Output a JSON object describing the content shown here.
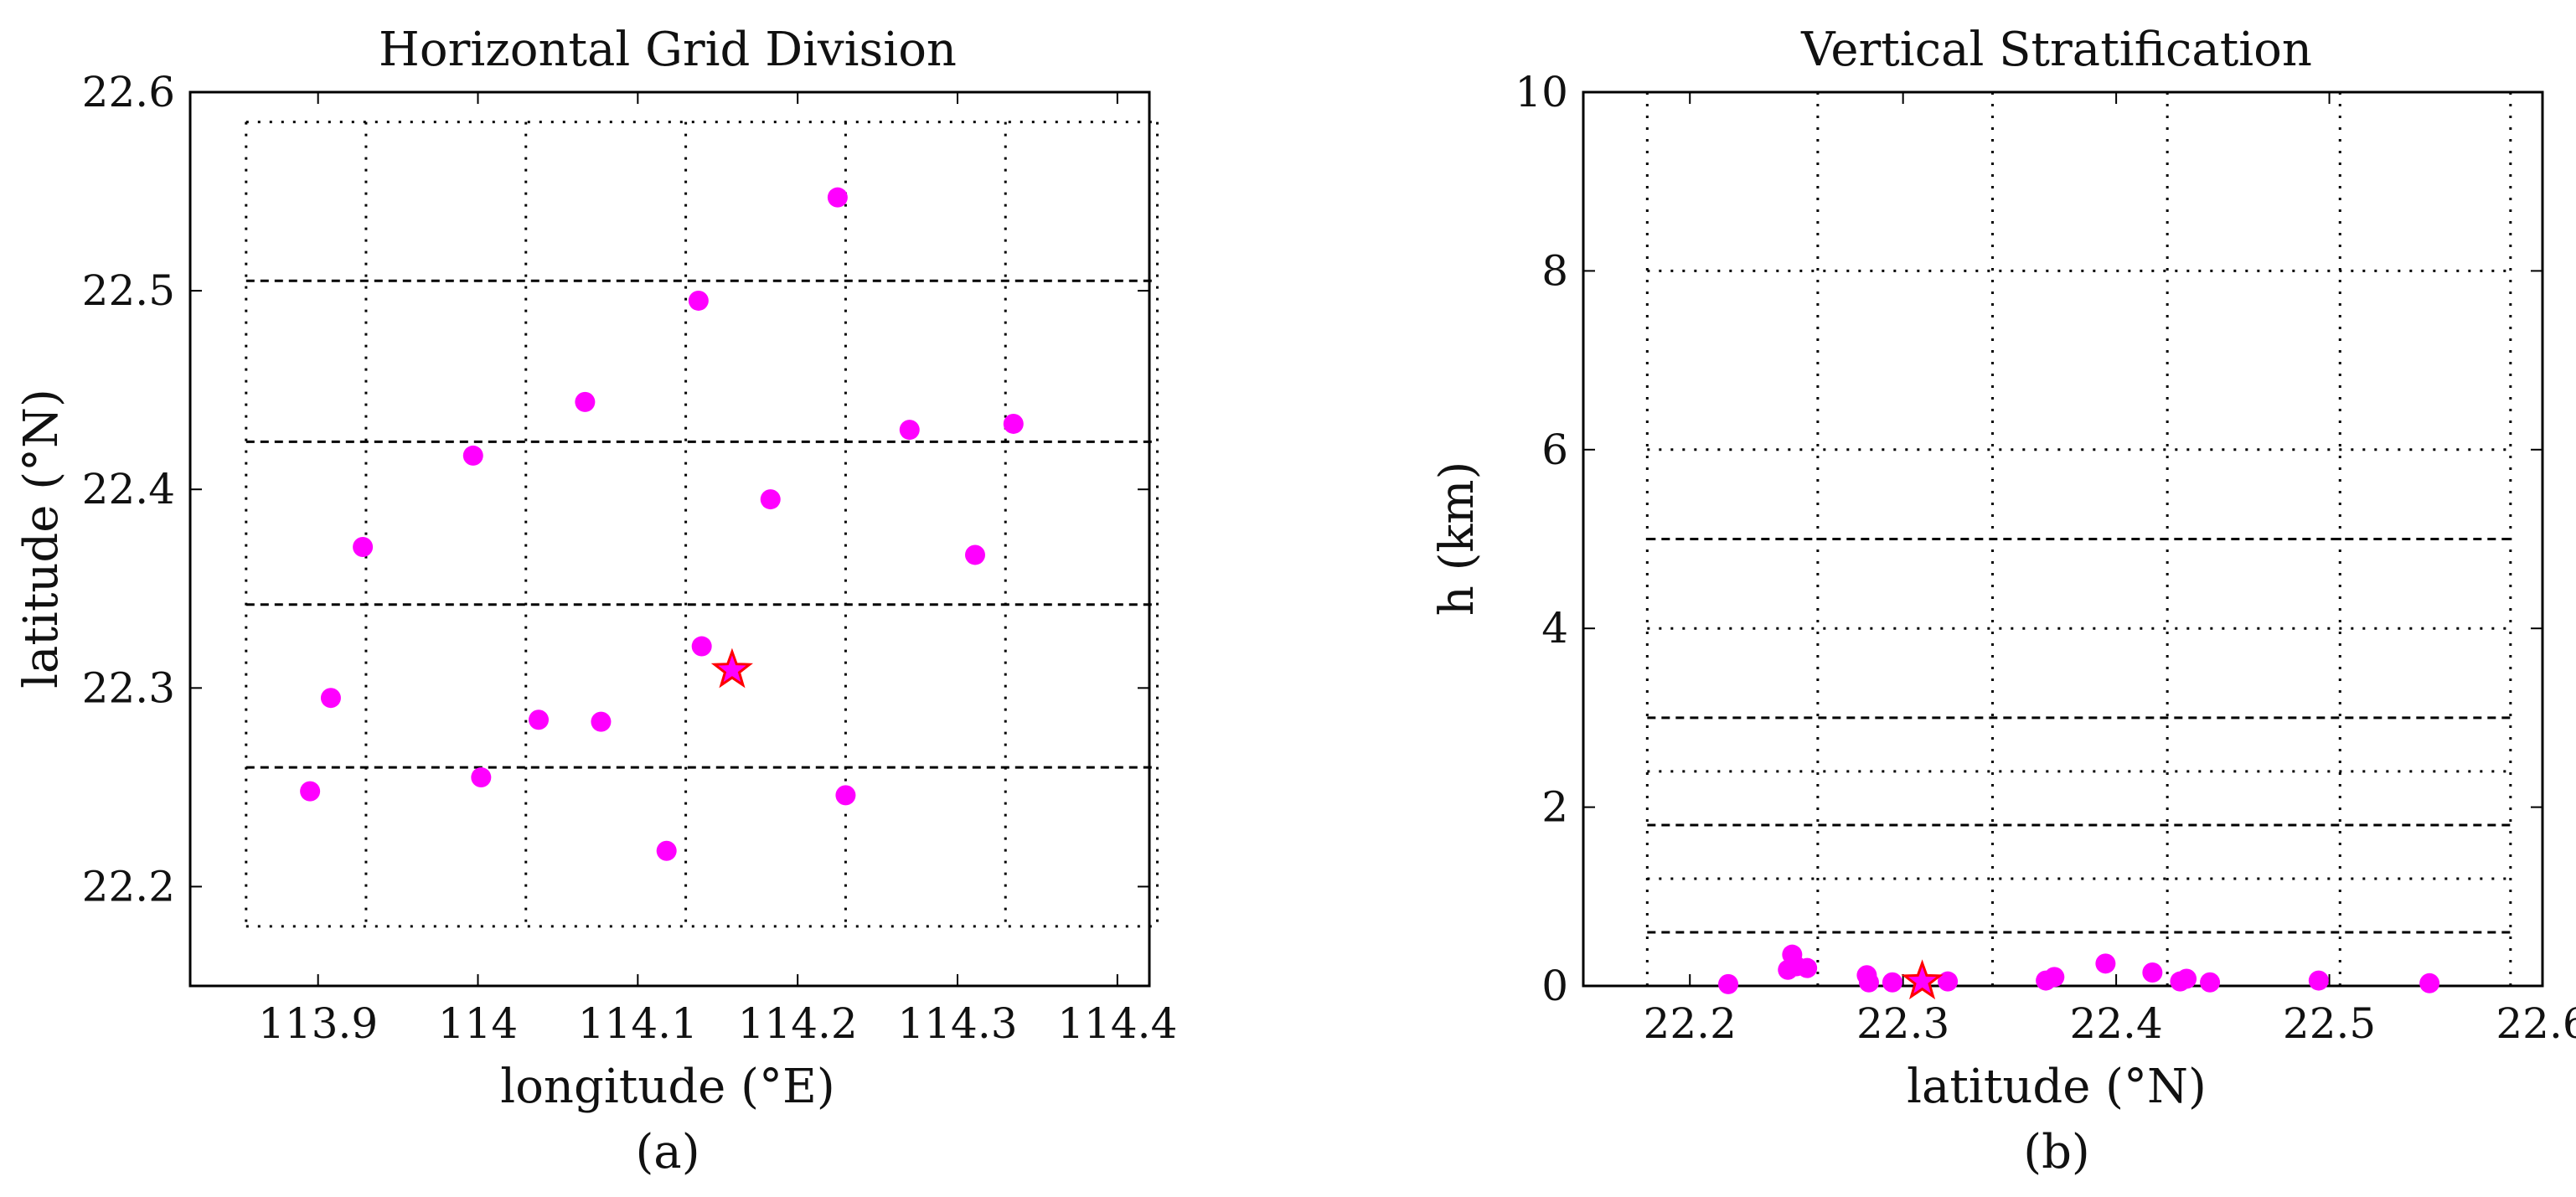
{
  "colors": {
    "point": "#ff00ff",
    "star": "#ff0000",
    "grid": "#000000",
    "axis": "#000000"
  },
  "chart_data": [
    {
      "type": "scatter",
      "panel_label": "(a)",
      "title": "Horizontal Grid Division",
      "xlabel": "longitude (°E)",
      "ylabel": "latitude (°N)",
      "xlim": [
        113.82,
        114.42
      ],
      "ylim": [
        22.15,
        22.6
      ],
      "xticks": [
        113.9,
        114,
        114.1,
        114.2,
        114.3,
        114.4
      ],
      "xtick_labels": [
        "113.9",
        "114",
        "114.1",
        "114.2",
        "114.3",
        "114.4"
      ],
      "yticks": [
        22.2,
        22.3,
        22.4,
        22.5,
        22.6
      ],
      "ytick_labels": [
        "22.2",
        "22.3",
        "22.4",
        "22.5",
        "22.6"
      ],
      "grid_dotted_x": [
        113.855,
        113.93,
        114.03,
        114.13,
        114.23,
        114.33,
        114.425
      ],
      "grid_dotted_y": [
        22.18,
        22.585
      ],
      "grid_dashed_y": [
        22.26,
        22.342,
        22.424,
        22.505
      ],
      "points": [
        {
          "x": 114.225,
          "y": 22.547
        },
        {
          "x": 114.138,
          "y": 22.495
        },
        {
          "x": 114.067,
          "y": 22.444
        },
        {
          "x": 114.27,
          "y": 22.43
        },
        {
          "x": 114.335,
          "y": 22.433
        },
        {
          "x": 113.997,
          "y": 22.417
        },
        {
          "x": 114.183,
          "y": 22.395
        },
        {
          "x": 113.928,
          "y": 22.371
        },
        {
          "x": 114.311,
          "y": 22.367
        },
        {
          "x": 114.14,
          "y": 22.321
        },
        {
          "x": 113.908,
          "y": 22.295
        },
        {
          "x": 114.038,
          "y": 22.284
        },
        {
          "x": 114.077,
          "y": 22.283
        },
        {
          "x": 113.895,
          "y": 22.248
        },
        {
          "x": 114.002,
          "y": 22.255
        },
        {
          "x": 114.23,
          "y": 22.246
        },
        {
          "x": 114.118,
          "y": 22.218
        }
      ],
      "star": {
        "x": 114.159,
        "y": 22.309
      }
    },
    {
      "type": "scatter",
      "panel_label": "(b)",
      "title": "Vertical Stratification",
      "xlabel": "latitude (°N)",
      "ylabel": "h (km)",
      "xlim": [
        22.15,
        22.6
      ],
      "ylim": [
        0,
        10
      ],
      "xticks": [
        22.2,
        22.3,
        22.4,
        22.5,
        22.6
      ],
      "xtick_labels": [
        "22.2",
        "22.3",
        "22.4",
        "22.5",
        "22.6"
      ],
      "yticks": [
        0,
        2,
        4,
        6,
        8,
        10
      ],
      "ytick_labels": [
        "0",
        "2",
        "4",
        "6",
        "8",
        "10"
      ],
      "grid_dotted_x": [
        22.18,
        22.26,
        22.342,
        22.424,
        22.505,
        22.585
      ],
      "grid_dotted_y": [
        10,
        8,
        6,
        4,
        2.4,
        1.2
      ],
      "grid_dashed_y": [
        5,
        3,
        1.8,
        0.6
      ],
      "points": [
        {
          "x": 22.218,
          "y": 0.02
        },
        {
          "x": 22.246,
          "y": 0.18
        },
        {
          "x": 22.248,
          "y": 0.35
        },
        {
          "x": 22.25,
          "y": 0.22
        },
        {
          "x": 22.255,
          "y": 0.2
        },
        {
          "x": 22.283,
          "y": 0.12
        },
        {
          "x": 22.284,
          "y": 0.04
        },
        {
          "x": 22.295,
          "y": 0.04
        },
        {
          "x": 22.321,
          "y": 0.05
        },
        {
          "x": 22.367,
          "y": 0.06
        },
        {
          "x": 22.371,
          "y": 0.1
        },
        {
          "x": 22.395,
          "y": 0.25
        },
        {
          "x": 22.417,
          "y": 0.15
        },
        {
          "x": 22.43,
          "y": 0.05
        },
        {
          "x": 22.433,
          "y": 0.08
        },
        {
          "x": 22.444,
          "y": 0.04
        },
        {
          "x": 22.495,
          "y": 0.06
        },
        {
          "x": 22.547,
          "y": 0.03
        }
      ],
      "star": {
        "x": 22.309,
        "y": 0.05
      }
    }
  ]
}
